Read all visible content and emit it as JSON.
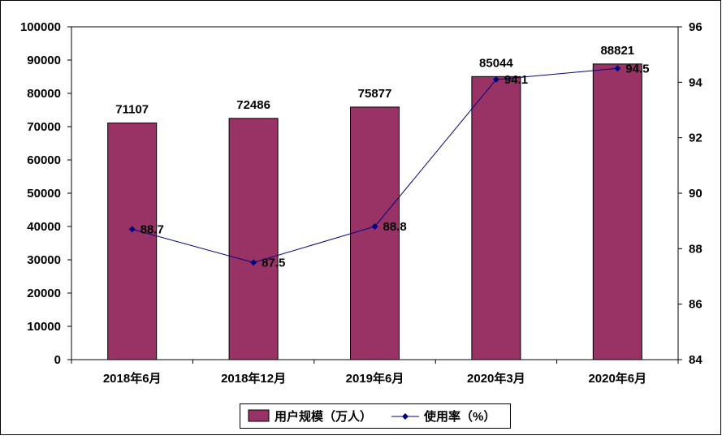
{
  "chart_data": {
    "type": "bar",
    "categories": [
      "2018年6月",
      "2018年12月",
      "2019年6月",
      "2020年3月",
      "2020年6月"
    ],
    "series": [
      {
        "name": "用户规模（万人）",
        "type": "bar",
        "axis": "left",
        "values": [
          71107,
          72486,
          75877,
          85044,
          88821
        ],
        "color": "#993366"
      },
      {
        "name": "使用率（%）",
        "type": "line",
        "axis": "right",
        "values": [
          88.7,
          87.5,
          88.8,
          94.1,
          94.5
        ],
        "color": "#000080"
      }
    ],
    "y_left": {
      "ylim": [
        0,
        100000
      ],
      "ticks": [
        "0",
        "10000",
        "20000",
        "30000",
        "40000",
        "50000",
        "60000",
        "70000",
        "80000",
        "90000",
        "100000"
      ]
    },
    "y_right": {
      "ylim": [
        84,
        96
      ],
      "ticks": [
        "84",
        "86",
        "88",
        "90",
        "92",
        "94",
        "96"
      ]
    },
    "bar_labels": [
      "71107",
      "72486",
      "75877",
      "85044",
      "88821"
    ],
    "line_labels": [
      "88.7",
      "87.5",
      "88.8",
      "94.1",
      "94.5"
    ],
    "legend": {
      "position": "bottom",
      "items": [
        "用户规模（万人）",
        "使用率（%）"
      ]
    },
    "grid": false
  }
}
